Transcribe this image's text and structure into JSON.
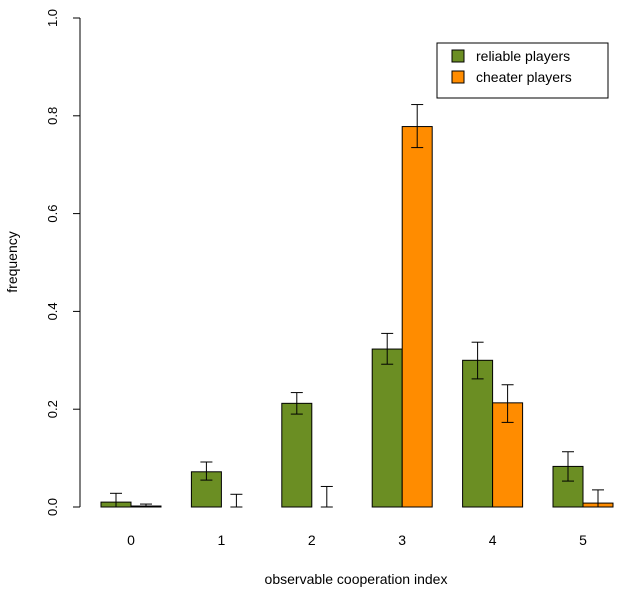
{
  "chart_data": {
    "type": "bar",
    "title": "",
    "xlabel": "observable cooperation index",
    "ylabel": "frequency",
    "categories": [
      "0",
      "1",
      "2",
      "3",
      "4",
      "5"
    ],
    "ylim": [
      0,
      1
    ],
    "yticks": [
      "0.0",
      "0.2",
      "0.4",
      "0.6",
      "0.8",
      "1.0"
    ],
    "grid": false,
    "legend_position": "top-right",
    "series": [
      {
        "name": "reliable players",
        "color": "#6b8e23",
        "values": [
          0.01,
          0.072,
          0.212,
          0.323,
          0.3,
          0.083
        ],
        "err_low": [
          0.0,
          0.055,
          0.19,
          0.292,
          0.262,
          0.053
        ],
        "err_high": [
          0.028,
          0.092,
          0.234,
          0.355,
          0.337,
          0.113
        ]
      },
      {
        "name": "cheater players",
        "color": "#ff8c00",
        "values": [
          0.002,
          0.0,
          0.0,
          0.778,
          0.213,
          0.008
        ],
        "err_low": [
          0.0,
          0.0,
          0.0,
          0.735,
          0.173,
          0.0
        ],
        "err_high": [
          0.006,
          0.026,
          0.042,
          0.823,
          0.25,
          0.035
        ]
      }
    ]
  }
}
